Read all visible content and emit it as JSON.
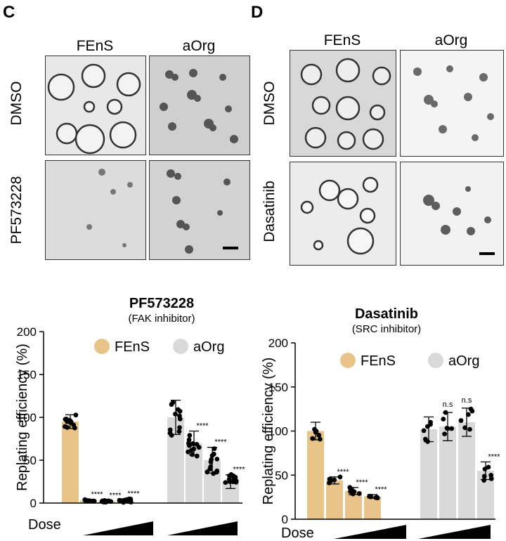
{
  "panels": {
    "C": {
      "letter": "C",
      "columns": [
        "FEnS",
        "aOrg"
      ],
      "rows": [
        "DMSO",
        "PF573228"
      ]
    },
    "D": {
      "letter": "D",
      "columns": [
        "FEnS",
        "aOrg"
      ],
      "rows": [
        "DMSO",
        "Dasatinib"
      ]
    }
  },
  "image_descriptions": {
    "note": ""
  },
  "chart_data": [
    {
      "type": "bar",
      "title": "PF573228",
      "subtitle": "(FAK inhibitor)",
      "ylabel": "Replating efficiency (%)",
      "xlabel": "Dose",
      "ylim": [
        0,
        200
      ],
      "yticks": [
        0,
        50,
        100,
        150,
        200
      ],
      "legend": [
        "FEnS",
        "aOrg"
      ],
      "series": [
        {
          "name": "FEnS",
          "color": "#e8c48a",
          "values": [
            95,
            3,
            2,
            3
          ],
          "errors": [
            8,
            1,
            1,
            2
          ],
          "significance": [
            "",
            "****",
            "****",
            "****"
          ]
        },
        {
          "name": "aOrg",
          "color": "#d9d9d9",
          "values": [
            100,
            70,
            50,
            25
          ],
          "errors": [
            20,
            14,
            15,
            8
          ],
          "significance": [
            "",
            "****",
            "****",
            "****"
          ]
        }
      ]
    },
    {
      "type": "bar",
      "title": "Dasatinib",
      "subtitle": "(SRC inhibitor)",
      "ylabel": "Replating efficiency (%)",
      "xlabel": "Dose",
      "ylim": [
        0,
        200
      ],
      "yticks": [
        0,
        50,
        100,
        150,
        200
      ],
      "legend": [
        "FEnS",
        "aOrg"
      ],
      "series": [
        {
          "name": "FEnS",
          "color": "#e8c48a",
          "values": [
            100,
            44,
            32,
            26
          ],
          "errors": [
            10,
            4,
            4,
            2
          ],
          "significance": [
            "",
            "****",
            "****",
            "****"
          ]
        },
        {
          "name": "aOrg",
          "color": "#d9d9d9",
          "values": [
            102,
            105,
            110,
            55
          ],
          "errors": [
            14,
            16,
            16,
            10
          ],
          "significance": [
            "",
            "n.s",
            "n.s",
            "****"
          ]
        }
      ]
    }
  ],
  "colors": {
    "fens": "#e8c48a",
    "aorg": "#d9d9d9",
    "dots": "#000000"
  }
}
